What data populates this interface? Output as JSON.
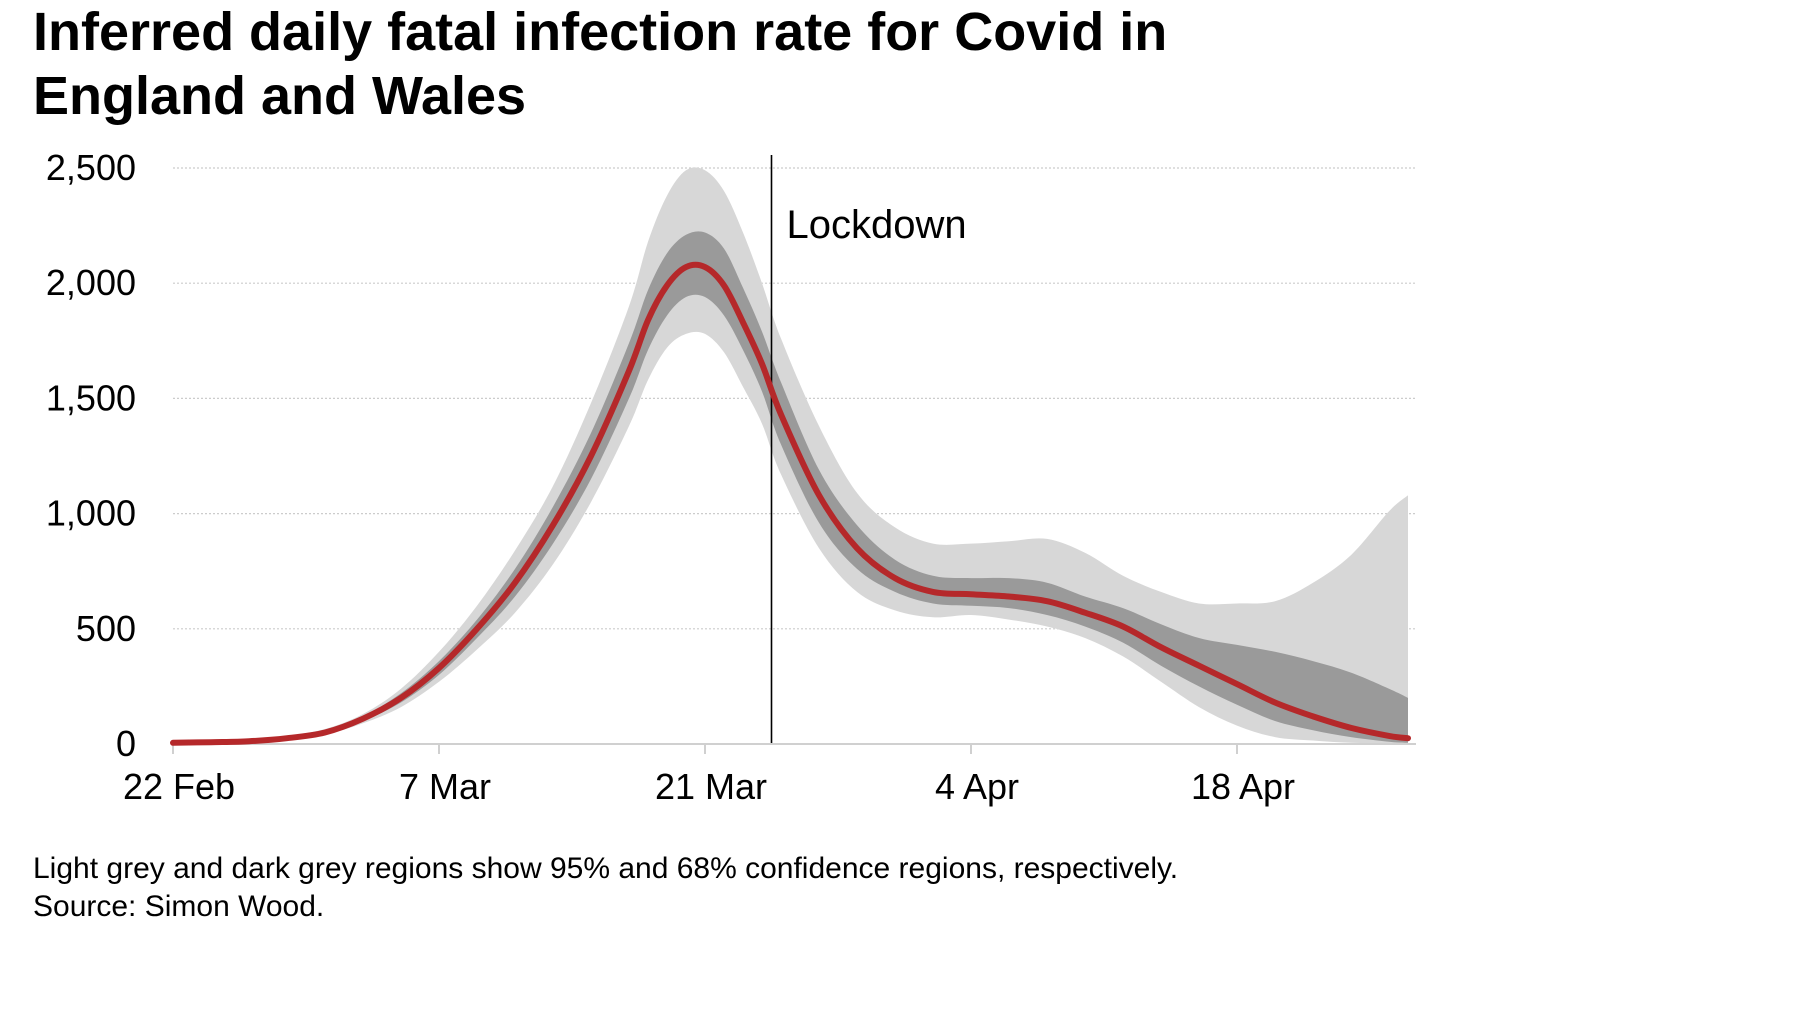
{
  "chart_data": {
    "type": "line",
    "title": "Inferred daily fatal infection rate for Covid in England and Wales",
    "xlabel": "",
    "ylabel": "",
    "ylim": [
      0,
      2500
    ],
    "yticks": [
      0,
      500,
      1000,
      1500,
      2000,
      2500
    ],
    "ytick_labels": [
      "0",
      "500",
      "1,000",
      "1,500",
      "2,000",
      "2,500"
    ],
    "xlim_days": [
      0,
      65
    ],
    "xticks": [
      {
        "day": 0,
        "label": "22 Feb"
      },
      {
        "day": 14,
        "label": "7 Mar"
      },
      {
        "day": 28,
        "label": "21 Mar"
      },
      {
        "day": 42,
        "label": "4 Apr"
      },
      {
        "day": 56,
        "label": "18 Apr"
      }
    ],
    "grid": true,
    "annotation": {
      "label": "Lockdown",
      "day": 31.5
    },
    "days": [
      0,
      2,
      4,
      6,
      8,
      10,
      12,
      14,
      16,
      18,
      20,
      22,
      24,
      25,
      26,
      27,
      28,
      29,
      30,
      31,
      32,
      34,
      36,
      38,
      40,
      42,
      44,
      46,
      48,
      50,
      52,
      54,
      56,
      58,
      60,
      62,
      64,
      65
    ],
    "median": [
      5,
      8,
      12,
      25,
      50,
      110,
      200,
      330,
      500,
      700,
      950,
      1250,
      1620,
      1840,
      1990,
      2070,
      2070,
      1990,
      1830,
      1650,
      1430,
      1080,
      850,
      720,
      660,
      650,
      640,
      620,
      570,
      510,
      420,
      340,
      260,
      180,
      120,
      70,
      35,
      25
    ],
    "ci68_lower": [
      3,
      5,
      10,
      20,
      45,
      100,
      180,
      300,
      460,
      640,
      870,
      1150,
      1500,
      1710,
      1860,
      1940,
      1940,
      1860,
      1710,
      1530,
      1300,
      960,
      760,
      660,
      610,
      600,
      590,
      560,
      510,
      440,
      340,
      250,
      170,
      100,
      60,
      30,
      10,
      5
    ],
    "ci68_upper": [
      7,
      11,
      15,
      30,
      55,
      120,
      220,
      360,
      540,
      760,
      1030,
      1350,
      1740,
      1970,
      2130,
      2210,
      2220,
      2150,
      1980,
      1790,
      1570,
      1190,
      950,
      800,
      730,
      720,
      720,
      700,
      640,
      590,
      520,
      460,
      430,
      400,
      360,
      310,
      240,
      200
    ],
    "ci95_lower": [
      2,
      4,
      8,
      18,
      40,
      90,
      160,
      270,
      410,
      570,
      780,
      1050,
      1380,
      1580,
      1720,
      1780,
      1780,
      1700,
      1550,
      1390,
      1170,
      850,
      660,
      580,
      550,
      560,
      540,
      510,
      460,
      380,
      270,
      160,
      80,
      30,
      15,
      5,
      2,
      0
    ],
    "ci95_upper": [
      9,
      14,
      20,
      35,
      65,
      130,
      240,
      400,
      600,
      840,
      1120,
      1480,
      1900,
      2180,
      2380,
      2490,
      2490,
      2400,
      2220,
      2000,
      1760,
      1380,
      1090,
      940,
      870,
      870,
      880,
      890,
      830,
      730,
      660,
      610,
      610,
      620,
      700,
      820,
      1010,
      1080
    ],
    "colors": {
      "median": "#b5282a",
      "ci68": "#9a9a9a",
      "ci95": "#d7d7d7",
      "grid": "#cccccc",
      "axis": "#d0d0d0",
      "lockdown": "#000000"
    }
  },
  "footnote": {
    "line1": "Light grey and dark grey regions show 95% and 68% confidence regions, respectively.",
    "line2": "Source: Simon Wood."
  }
}
